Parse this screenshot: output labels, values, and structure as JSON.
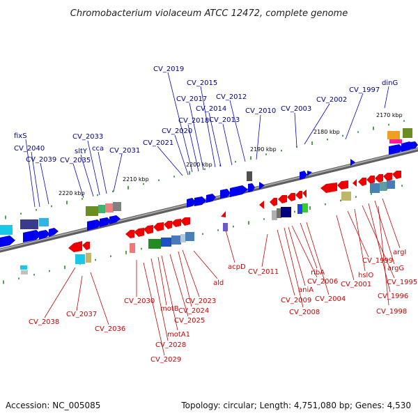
{
  "title": "Chromobacterium violaceum ATCC 12472, complete genome",
  "footer": {
    "accession": "Accession: NC_005085",
    "stats": "Topology: circular; Length: 4,751,080 bp; Genes: 4,530"
  },
  "colors": {
    "forward": "#0000ee",
    "reverse": "#ee0000",
    "label_forward": "#00008b",
    "label_reverse": "#cc0000",
    "backbone": "#8a8a8a",
    "ticks": "#228b22"
  },
  "kbp_labels": [
    "2170 kbp",
    "2180 kbp",
    "2190 kbp",
    "2200 kbp",
    "2210 kbp",
    "2220 kbp"
  ],
  "top_labels": [
    "fixS",
    "CV_2040",
    "CV_2039",
    "CV_2035",
    "sltY",
    "CV_2033",
    "cca",
    "CV_2031",
    "CV_2021",
    "CV_2020",
    "CV_2019",
    "CV_2018",
    "CV_2017",
    "CV_2015",
    "CV_2014",
    "CV_2013",
    "CV_2012",
    "CV_2010",
    "CV_2003",
    "CV_2002",
    "CV_1997",
    "dinG"
  ],
  "bottom_labels": [
    "CV_2038",
    "CV_2037",
    "CV_2036",
    "CV_2030",
    "CV_2029",
    "CV_2028",
    "motB",
    "motA1",
    "CV_2025",
    "CV_2024",
    "CV_2023",
    "ald",
    "acpD",
    "CV_2011",
    "CV_2009",
    "CV_2008",
    "aniA",
    "CV_2006",
    "ribA",
    "CV_2004",
    "CV_2001",
    "CV_1999",
    "hslO",
    "CV_1995",
    "CV_1996",
    "argG",
    "argI",
    "CV_1998"
  ]
}
